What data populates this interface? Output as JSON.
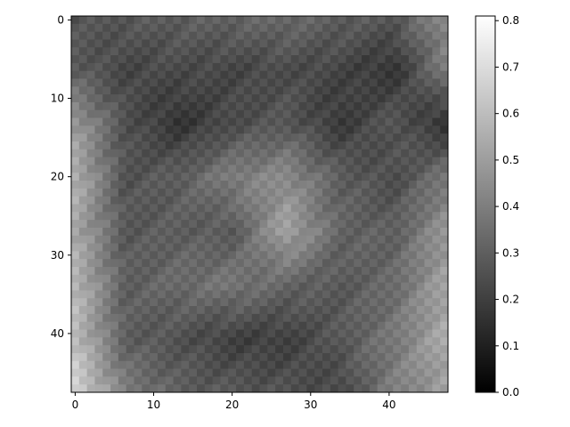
{
  "chart_data": {
    "type": "heatmap",
    "title": "",
    "xlabel": "",
    "ylabel": "",
    "colormap": "gray",
    "grid": false,
    "rows": 48,
    "cols": 48,
    "xlim": [
      -0.5,
      47.5
    ],
    "ylim": [
      47.5,
      -0.5
    ],
    "xticks": [
      0,
      10,
      20,
      30,
      40
    ],
    "xtick_labels": [
      "0",
      "10",
      "20",
      "30",
      "40"
    ],
    "yticks": [
      0,
      10,
      20,
      30,
      40
    ],
    "ytick_labels": [
      "0",
      "10",
      "20",
      "30",
      "40"
    ],
    "colorbar": {
      "min": 0.0,
      "max": 0.81,
      "ticks": [
        0.0,
        0.1,
        0.2,
        0.3,
        0.4,
        0.5,
        0.6,
        0.7,
        0.8
      ],
      "tick_labels": [
        "0.0",
        "0.1",
        "0.2",
        "0.3",
        "0.4",
        "0.5",
        "0.6",
        "0.7",
        "0.8"
      ]
    },
    "value_grid_8x8": [
      [
        0.26,
        0.28,
        0.3,
        0.32,
        0.34,
        0.3,
        0.28,
        0.45
      ],
      [
        0.3,
        0.22,
        0.24,
        0.22,
        0.24,
        0.22,
        0.16,
        0.4
      ],
      [
        0.5,
        0.26,
        0.16,
        0.24,
        0.28,
        0.18,
        0.28,
        0.14
      ],
      [
        0.58,
        0.26,
        0.3,
        0.4,
        0.44,
        0.3,
        0.24,
        0.38
      ],
      [
        0.55,
        0.28,
        0.3,
        0.28,
        0.52,
        0.32,
        0.3,
        0.48
      ],
      [
        0.6,
        0.3,
        0.34,
        0.38,
        0.32,
        0.28,
        0.34,
        0.52
      ],
      [
        0.62,
        0.3,
        0.26,
        0.2,
        0.2,
        0.28,
        0.38,
        0.55
      ],
      [
        0.7,
        0.4,
        0.3,
        0.28,
        0.26,
        0.22,
        0.4,
        0.5
      ]
    ]
  }
}
